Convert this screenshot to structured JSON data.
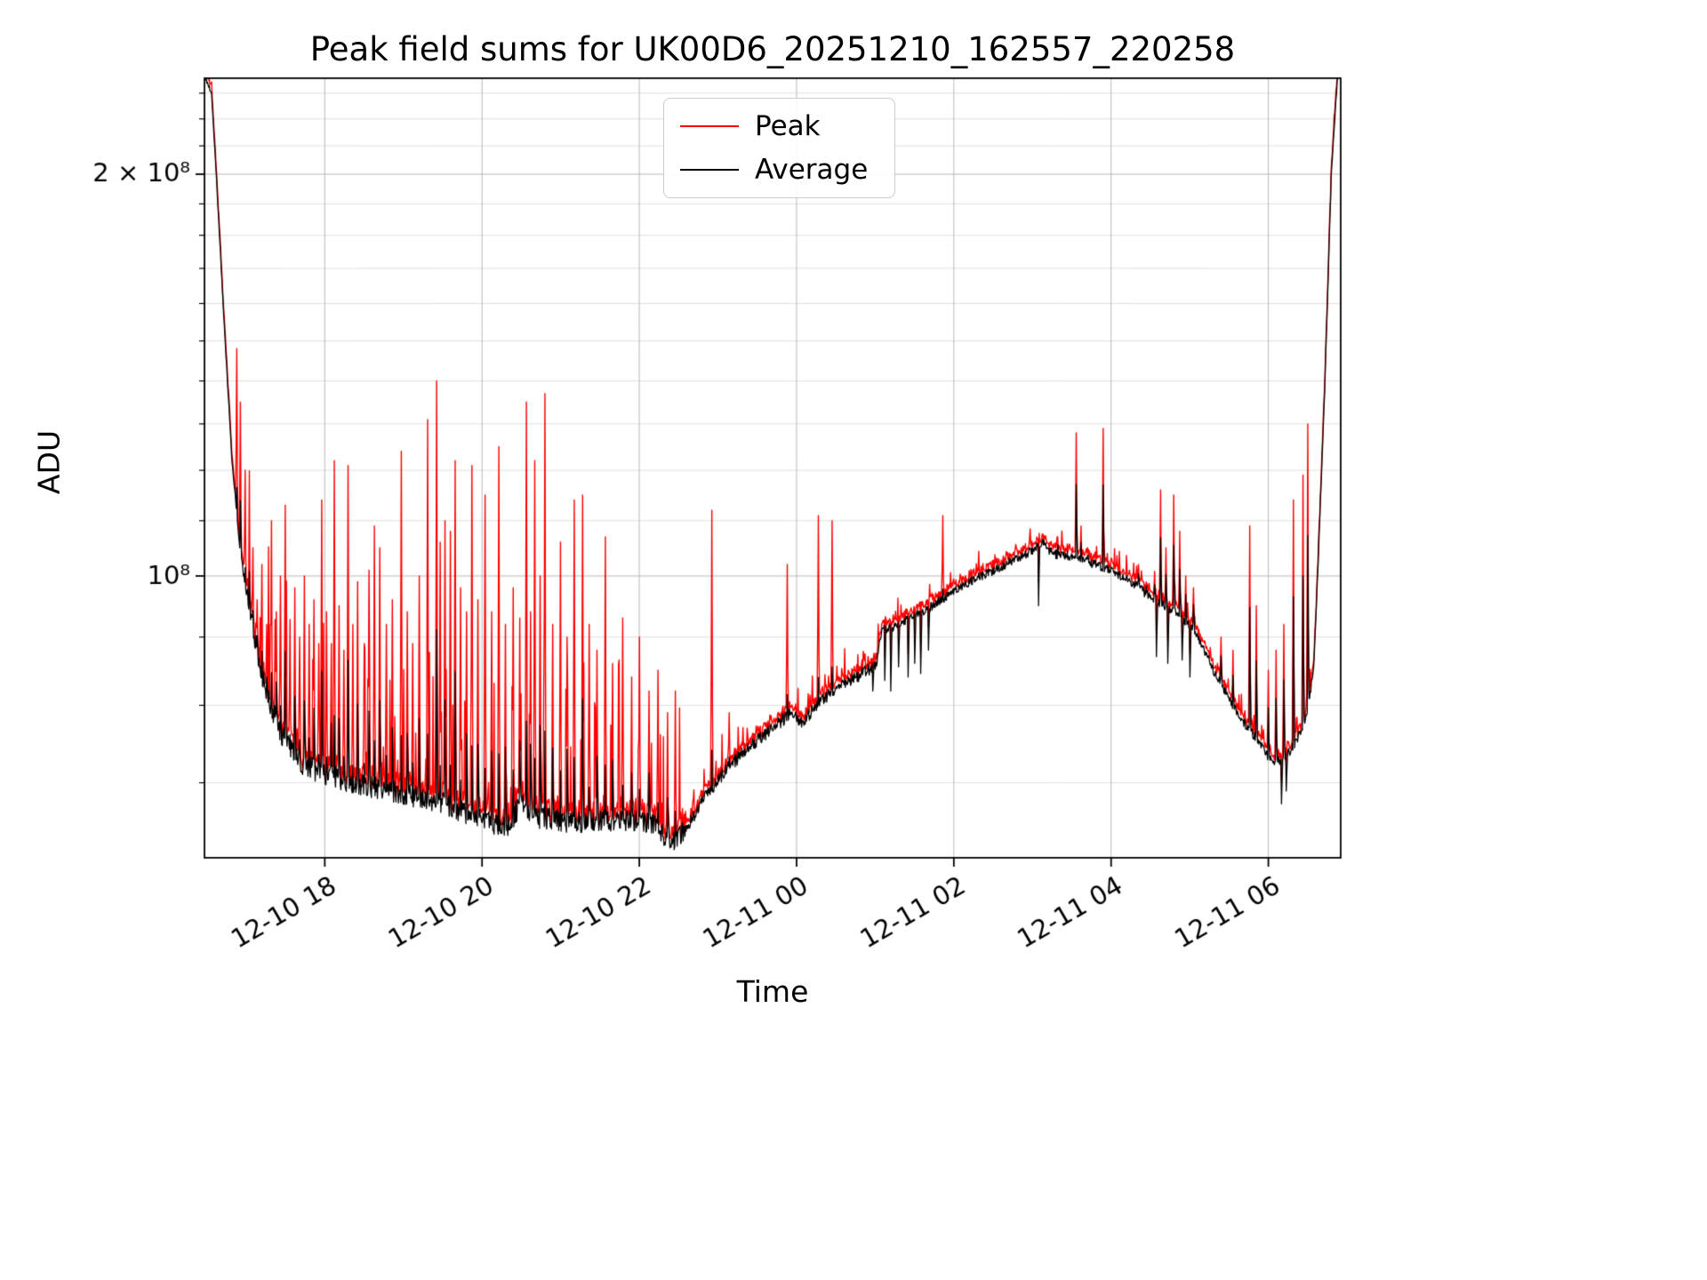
{
  "chart_data": {
    "type": "line",
    "title": "Peak field sums for UK00D6_20251210_162557_220258",
    "xlabel": "Time",
    "ylabel": "ADU",
    "yscale": "log",
    "grid": true,
    "legend_position": "upper center",
    "x_unit": "hours since 2025-12-10 00:00",
    "x_range_hours": [
      16.47,
      30.92
    ],
    "ylim": [
      61500000.0,
      236000000.0
    ],
    "x_ticks": [
      {
        "hour": 18,
        "label": "12-10 18"
      },
      {
        "hour": 20,
        "label": "12-10 20"
      },
      {
        "hour": 22,
        "label": "12-10 22"
      },
      {
        "hour": 24,
        "label": "12-11 00"
      },
      {
        "hour": 26,
        "label": "12-11 02"
      },
      {
        "hour": 28,
        "label": "12-11 04"
      },
      {
        "hour": 30,
        "label": "12-11 06"
      }
    ],
    "y_ticks": [
      {
        "value": 200000000.0,
        "label": "2 × 10⁸"
      },
      {
        "value": 100000000.0,
        "label": "10⁸"
      }
    ],
    "y_gridlines_minor": [
      70000000.0,
      80000000.0,
      90000000.0,
      110000000.0,
      120000000.0,
      130000000.0,
      140000000.0,
      150000000.0,
      160000000.0,
      170000000.0,
      180000000.0,
      190000000.0,
      210000000.0,
      220000000.0,
      230000000.0
    ],
    "series": [
      {
        "name": "Peak",
        "color": "#ff0000"
      },
      {
        "name": "Average",
        "color": "#000000"
      }
    ],
    "average_keypoints": [
      [
        16.47,
        237000000.0
      ],
      [
        16.56,
        230000000.0
      ],
      [
        16.62,
        200000000.0
      ],
      [
        16.72,
        155000000.0
      ],
      [
        16.82,
        122000000.0
      ],
      [
        16.92,
        105000000.0
      ],
      [
        17.02,
        97000000.0
      ],
      [
        17.12,
        89000000.0
      ],
      [
        17.25,
        82000000.0
      ],
      [
        17.45,
        76000000.0
      ],
      [
        17.7,
        72500000.0
      ],
      [
        18.0,
        71000000.0
      ],
      [
        18.4,
        70000000.0
      ],
      [
        18.9,
        69000000.0
      ],
      [
        19.4,
        67800000.0
      ],
      [
        19.9,
        66200000.0
      ],
      [
        20.15,
        65200000.0
      ],
      [
        20.35,
        65200000.0
      ],
      [
        20.5,
        67800000.0
      ],
      [
        20.7,
        66000000.0
      ],
      [
        21.1,
        65500000.0
      ],
      [
        21.5,
        65500000.0
      ],
      [
        21.9,
        65500000.0
      ],
      [
        22.15,
        65200000.0
      ],
      [
        22.35,
        63800000.0
      ],
      [
        22.45,
        63000000.0
      ],
      [
        22.62,
        65000000.0
      ],
      [
        22.85,
        68500000.0
      ],
      [
        23.1,
        71500000.0
      ],
      [
        23.4,
        74500000.0
      ],
      [
        23.7,
        77000000.0
      ],
      [
        23.95,
        79000000.0
      ],
      [
        24.05,
        77500000.0
      ],
      [
        24.3,
        80500000.0
      ],
      [
        24.6,
        83000000.0
      ],
      [
        24.9,
        85000000.0
      ],
      [
        25.02,
        86000000.0
      ],
      [
        25.08,
        91000000.0
      ],
      [
        25.3,
        92000000.0
      ],
      [
        25.6,
        94000000.0
      ],
      [
        25.9,
        96500000.0
      ],
      [
        26.2,
        99000000.0
      ],
      [
        26.5,
        101000000.0
      ],
      [
        26.8,
        103000000.0
      ],
      [
        27.0,
        104500000.0
      ],
      [
        27.12,
        106000000.0
      ],
      [
        27.25,
        104000000.0
      ],
      [
        27.6,
        103000000.0
      ],
      [
        27.9,
        101500000.0
      ],
      [
        28.2,
        99500000.0
      ],
      [
        28.5,
        96500000.0
      ],
      [
        28.8,
        94000000.0
      ],
      [
        29.05,
        91500000.0
      ],
      [
        29.3,
        85000000.0
      ],
      [
        29.6,
        79000000.0
      ],
      [
        29.85,
        75500000.0
      ],
      [
        30.05,
        72500000.0
      ],
      [
        30.2,
        73000000.0
      ],
      [
        30.35,
        75000000.0
      ],
      [
        30.5,
        79000000.0
      ],
      [
        30.58,
        86000000.0
      ],
      [
        30.64,
        105000000.0
      ],
      [
        30.72,
        140000000.0
      ],
      [
        30.8,
        200000000.0
      ],
      [
        30.88,
        237000000.0
      ],
      [
        30.92,
        238000000.0
      ]
    ],
    "peak_spikes": [
      [
        16.88,
        148000000.0
      ],
      [
        16.93,
        135000000.0
      ],
      [
        16.99,
        120000000.0
      ],
      [
        17.04,
        110000000.0
      ],
      [
        17.09,
        105000000.0
      ],
      [
        17.14,
        96000000.0
      ],
      [
        17.2,
        102000000.0
      ],
      [
        17.26,
        92000000.0
      ],
      [
        17.32,
        110000000.0
      ],
      [
        17.38,
        94000000.0
      ],
      [
        17.44,
        100000000.0
      ],
      [
        17.5,
        113000000.0
      ],
      [
        17.56,
        92000000.0
      ],
      [
        17.62,
        98000000.0
      ],
      [
        17.68,
        90000000.0
      ],
      [
        17.74,
        100000000.0
      ],
      [
        17.8,
        92000000.0
      ],
      [
        17.86,
        96000000.0
      ],
      [
        17.92,
        89000000.0
      ],
      [
        17.96,
        114000000.0
      ],
      [
        18.02,
        94000000.0
      ],
      [
        18.08,
        89000000.0
      ],
      [
        18.12,
        122000000.0
      ],
      [
        18.18,
        95000000.0
      ],
      [
        18.24,
        88000000.0
      ],
      [
        18.3,
        121000000.0
      ],
      [
        18.36,
        92000000.0
      ],
      [
        18.42,
        99000000.0
      ],
      [
        18.5,
        89000000.0
      ],
      [
        18.56,
        101000000.0
      ],
      [
        18.63,
        109000000.0
      ],
      [
        18.7,
        105000000.0
      ],
      [
        18.78,
        92000000.0
      ],
      [
        18.86,
        96000000.0
      ],
      [
        18.97,
        124000000.0
      ],
      [
        19.05,
        94000000.0
      ],
      [
        19.12,
        89000000.0
      ],
      [
        19.2,
        100000000.0
      ],
      [
        19.31,
        131000000.0
      ],
      [
        19.42,
        140000000.0
      ],
      [
        19.47,
        106000000.0
      ],
      [
        19.53,
        110000000.0
      ],
      [
        19.6,
        108000000.0
      ],
      [
        19.66,
        122000000.0
      ],
      [
        19.73,
        98000000.0
      ],
      [
        19.8,
        94000000.0
      ],
      [
        19.87,
        121000000.0
      ],
      [
        19.95,
        96000000.0
      ],
      [
        20.04,
        115000000.0
      ],
      [
        20.12,
        94000000.0
      ],
      [
        20.21,
        125000000.0
      ],
      [
        20.3,
        92000000.0
      ],
      [
        20.4,
        98000000.0
      ],
      [
        20.48,
        93000000.0
      ],
      [
        20.56,
        135000000.0
      ],
      [
        20.62,
        94000000.0
      ],
      [
        20.67,
        122000000.0
      ],
      [
        20.74,
        100000000.0
      ],
      [
        20.8,
        137000000.0
      ],
      [
        20.9,
        92000000.0
      ],
      [
        21.0,
        106000000.0
      ],
      [
        21.08,
        90000000.0
      ],
      [
        21.17,
        114000000.0
      ],
      [
        21.28,
        115000000.0
      ],
      [
        21.36,
        92000000.0
      ],
      [
        21.46,
        88000000.0
      ],
      [
        21.57,
        107000000.0
      ],
      [
        21.66,
        86000000.0
      ],
      [
        21.79,
        93000000.0
      ],
      [
        21.9,
        84000000.0
      ],
      [
        22.0,
        90000000.0
      ],
      [
        22.12,
        82000000.0
      ],
      [
        22.24,
        85000000.0
      ],
      [
        22.36,
        79000000.0
      ],
      [
        22.46,
        82000000.0
      ],
      [
        22.92,
        112000000.0
      ],
      [
        23.14,
        79000000.0
      ],
      [
        23.32,
        77000000.0
      ],
      [
        23.88,
        102000000.0
      ],
      [
        24.28,
        111000000.0
      ],
      [
        24.45,
        110000000.0
      ],
      [
        25.86,
        111000000.0
      ],
      [
        27.32,
        107000000.0
      ],
      [
        27.56,
        128000000.0
      ],
      [
        27.62,
        109000000.0
      ],
      [
        27.7,
        105000000.0
      ],
      [
        27.9,
        129000000.0
      ],
      [
        28.35,
        102000000.0
      ],
      [
        28.45,
        99000000.0
      ],
      [
        28.55,
        100000000.0
      ],
      [
        28.63,
        116000000.0
      ],
      [
        28.7,
        105000000.0
      ],
      [
        28.8,
        115000000.0
      ],
      [
        28.87,
        108000000.0
      ],
      [
        28.95,
        100000000.0
      ],
      [
        29.05,
        98000000.0
      ],
      [
        29.4,
        90000000.0
      ],
      [
        29.55,
        88000000.0
      ],
      [
        29.76,
        109000000.0
      ],
      [
        29.85,
        95000000.0
      ],
      [
        30.0,
        85000000.0
      ],
      [
        30.1,
        88000000.0
      ],
      [
        30.2,
        92000000.0
      ],
      [
        30.32,
        114000000.0
      ],
      [
        30.44,
        119000000.0
      ],
      [
        30.5,
        130000000.0
      ]
    ],
    "average_dips": [
      [
        24.97,
        82000000.0
      ],
      [
        25.12,
        83500000.0
      ],
      [
        25.2,
        82000000.0
      ],
      [
        25.3,
        85500000.0
      ],
      [
        25.42,
        84000000.0
      ],
      [
        25.5,
        86000000.0
      ],
      [
        25.58,
        84500000.0
      ],
      [
        25.68,
        88000000.0
      ],
      [
        27.08,
        95000000.0
      ],
      [
        28.58,
        87000000.0
      ],
      [
        28.72,
        86000000.0
      ],
      [
        28.9,
        86500000.0
      ],
      [
        29.0,
        84000000.0
      ],
      [
        30.17,
        67500000.0
      ],
      [
        30.23,
        69000000.0
      ]
    ],
    "noise_regions": [
      {
        "until": 16.95,
        "avg_jitter": 0.004,
        "peak_extra": 0.012
      },
      {
        "until": 22.6,
        "avg_jitter": 0.02,
        "peak_extra": 0.3
      },
      {
        "until": 25.05,
        "avg_jitter": 0.011,
        "peak_extra": 0.05
      },
      {
        "until": 30.55,
        "avg_jitter": 0.008,
        "peak_extra": 0.028
      },
      {
        "until": 31.0,
        "avg_jitter": 0.004,
        "peak_extra": 0.012
      }
    ]
  }
}
